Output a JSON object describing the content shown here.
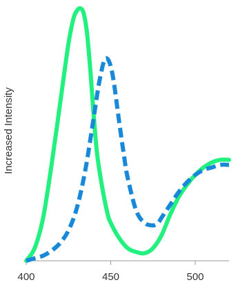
{
  "chart_data": {
    "type": "line",
    "title": "",
    "xlabel": "",
    "ylabel": "Increased Intensity",
    "xlim": [
      400,
      520
    ],
    "ylim": [
      0,
      1
    ],
    "xticks": [
      400,
      450,
      500
    ],
    "xtick_labels": [
      "400",
      "450",
      "500"
    ],
    "grid": false,
    "legend": "none",
    "series": [
      {
        "style": "solid",
        "color": "#22f07f",
        "x": [
          400,
          405,
          410,
          415,
          420,
          425,
          428,
          430,
          432,
          434,
          436,
          438,
          440,
          442,
          445,
          448,
          450,
          455,
          460,
          465,
          470,
          475,
          480,
          485,
          490,
          495,
          500,
          505,
          510,
          515,
          520
        ],
        "y": [
          0.0,
          0.05,
          0.17,
          0.38,
          0.62,
          0.86,
          0.96,
          0.99,
          1.0,
          0.98,
          0.9,
          0.75,
          0.57,
          0.42,
          0.29,
          0.19,
          0.15,
          0.09,
          0.05,
          0.035,
          0.03,
          0.05,
          0.1,
          0.18,
          0.25,
          0.3,
          0.34,
          0.37,
          0.39,
          0.4,
          0.4
        ]
      },
      {
        "style": "dashed",
        "color": "#1a88d8",
        "x": [
          400,
          405,
          410,
          415,
          420,
          425,
          430,
          435,
          440,
          443,
          446,
          448,
          450,
          452,
          455,
          458,
          460,
          465,
          470,
          475,
          478,
          480,
          485,
          490,
          495,
          500,
          505,
          510,
          515,
          520
        ],
        "y": [
          0.0,
          0.01,
          0.02,
          0.04,
          0.07,
          0.12,
          0.21,
          0.36,
          0.57,
          0.7,
          0.79,
          0.8,
          0.77,
          0.7,
          0.55,
          0.41,
          0.33,
          0.2,
          0.15,
          0.14,
          0.15,
          0.17,
          0.22,
          0.27,
          0.31,
          0.34,
          0.36,
          0.37,
          0.38,
          0.38
        ]
      }
    ]
  }
}
